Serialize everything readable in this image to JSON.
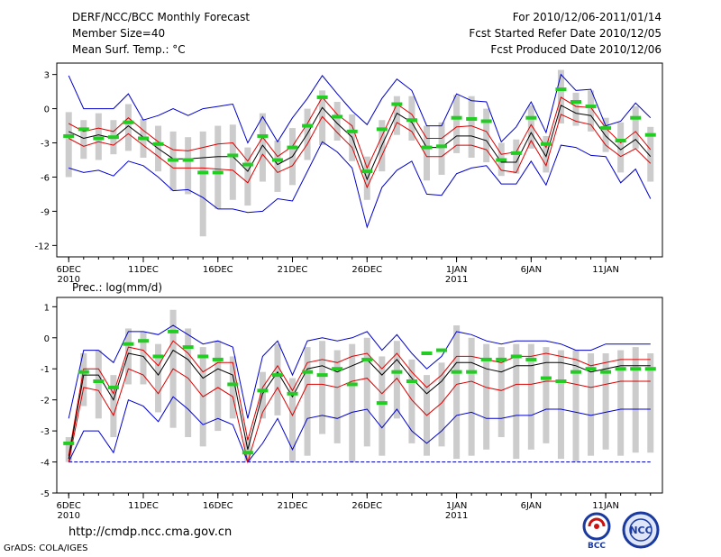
{
  "header": {
    "title": "DERF/NCC/BCC Monthly Forecast",
    "member_size": "Member Size=40",
    "variable": "Mean Surf. Temp.: °C",
    "forecast_period": "For 2010/12/06-2011/01/14",
    "started_refer_date": "Fcst Started Refer Date 2010/12/05",
    "produced_date": "Fcst Produced Date 2010/12/06"
  },
  "footer": {
    "url": "http://cmdp.ncc.cma.gov.cn",
    "grads_credit": "GrADS: COLA/IGES",
    "logo_bcc_text": "BCC",
    "logo_ncc_text": "NCC"
  },
  "colors": {
    "ensemble_mean": "#000000",
    "spread_band": "#dd0000",
    "extreme_envelope": "#0000cc",
    "observed": "#22cc22",
    "member_range": "#cccccc",
    "baseline": "#0000cc"
  },
  "chart_data": [
    {
      "type": "line",
      "title": "Mean Surf. Temp.: °C",
      "x_tick_labels": [
        {
          "day": 0,
          "label": "6DEC",
          "year": "2010"
        },
        {
          "day": 5,
          "label": "11DEC"
        },
        {
          "day": 10,
          "label": "16DEC"
        },
        {
          "day": 15,
          "label": "21DEC"
        },
        {
          "day": 20,
          "label": "26DEC"
        },
        {
          "day": 26,
          "label": "1JAN",
          "year": "2011"
        },
        {
          "day": 31,
          "label": "6JAN"
        },
        {
          "day": 36,
          "label": "11JAN"
        }
      ],
      "ylim": [
        -13,
        4
      ],
      "yticks": [
        3,
        0,
        -3,
        -6,
        -9,
        -12
      ],
      "xlim": [
        -0.8,
        39.8
      ],
      "series": [
        {
          "name": "ensemble mean",
          "role": "mean",
          "values": [
            -2,
            -2.6,
            -2.3,
            -2.6,
            -1.5,
            -2.5,
            -3.5,
            -4.4,
            -4.4,
            -4.3,
            -4.2,
            -4.2,
            -5.5,
            -3.2,
            -4.9,
            -4.2,
            -2.2,
            0.1,
            -1.3,
            -2.5,
            -6.2,
            -3.2,
            -0.4,
            -1.2,
            -3.4,
            -3.4,
            -2.4,
            -2.4,
            -2.8,
            -4.7,
            -4.7,
            -2.1,
            -4.2,
            0.3,
            -0.4,
            -0.6,
            -2.4,
            -3.6,
            -2.7,
            -4.2
          ]
        },
        {
          "name": "upper spread",
          "role": "band",
          "values": [
            -1.3,
            -2,
            -1.7,
            -2,
            -0.8,
            -1.9,
            -2.9,
            -3.6,
            -3.7,
            -3.4,
            -3.1,
            -3,
            -4.6,
            -2.5,
            -4.2,
            -3.3,
            -1.3,
            1,
            -0.5,
            -1.5,
            -5.2,
            -2.4,
            0.4,
            -0.5,
            -2.6,
            -2.6,
            -1.6,
            -1.5,
            -2,
            -4,
            -3.8,
            -1.4,
            -3.4,
            1,
            0.2,
            0.1,
            -1.7,
            -3,
            -2,
            -3.6
          ]
        },
        {
          "name": "lower spread",
          "role": "band",
          "values": [
            -2.6,
            -3.3,
            -2.9,
            -3.2,
            -2.2,
            -3.2,
            -4.2,
            -5.2,
            -5.2,
            -5.2,
            -5.3,
            -5.4,
            -6.5,
            -4,
            -5.6,
            -5,
            -3.1,
            -0.7,
            -2.1,
            -3.4,
            -6.9,
            -4.1,
            -1.2,
            -2,
            -4.2,
            -4.2,
            -3.2,
            -3.2,
            -3.6,
            -5.4,
            -5.6,
            -2.8,
            -5,
            -0.5,
            -1.1,
            -1.4,
            -3.2,
            -4.2,
            -3.5,
            -4.8
          ]
        },
        {
          "name": "ensemble max",
          "role": "envelope",
          "values": [
            2.9,
            0,
            0,
            0,
            1.3,
            -1,
            -0.6,
            0,
            -0.6,
            0,
            0.2,
            0.4,
            -3,
            -0.7,
            -2.9,
            -0.8,
            0.9,
            2.9,
            1.3,
            -0.2,
            -1.4,
            0.9,
            2.6,
            1.6,
            -1.5,
            -1.5,
            1.3,
            0.7,
            0.6,
            -2.9,
            -1.6,
            0.6,
            -2.1,
            3,
            1.6,
            1.7,
            -1.5,
            -1.1,
            0.5,
            -0.8
          ]
        },
        {
          "name": "ensemble min",
          "role": "envelope",
          "values": [
            -5.2,
            -5.6,
            -5.4,
            -5.9,
            -4.6,
            -5,
            -6,
            -7.2,
            -7.1,
            -7.8,
            -8.8,
            -8.8,
            -9.1,
            -9,
            -7.9,
            -8.1,
            -5.5,
            -2.9,
            -3.8,
            -5.2,
            -10.4,
            -6.9,
            -5.4,
            -4.6,
            -7.5,
            -7.6,
            -5.7,
            -5.2,
            -5,
            -6.6,
            -6.6,
            -4.6,
            -6.7,
            -3.2,
            -3.4,
            -4.1,
            -4.2,
            -6.5,
            -5.3,
            -7.9
          ]
        },
        {
          "name": "observed",
          "role": "obs",
          "values": [
            -2.4,
            -1.8,
            -2.6,
            -2.5,
            -1.2,
            -2.6,
            -3.1,
            -4.5,
            -4.5,
            -5.6,
            -5.6,
            -4.1,
            -4.9,
            -2.4,
            -4.5,
            -3.4,
            -1.5,
            1,
            -0.7,
            -2,
            -5.5,
            -1.8,
            0.4,
            -1,
            -3.4,
            -3.3,
            -0.8,
            -0.9,
            -1.1,
            -4.5,
            -3.9,
            -0.8,
            -3.1,
            1.7,
            0.6,
            0.2,
            -1.7,
            -2.8,
            -0.8,
            -2.3
          ]
        },
        {
          "name": "member max",
          "role": "range_top",
          "values": [
            -0.3,
            -1,
            -0.4,
            -1,
            0.4,
            -0.9,
            -1.5,
            -2,
            -2.5,
            -2,
            -1.5,
            -1.4,
            -3.4,
            -0.4,
            -2.8,
            -1.7,
            0,
            1.6,
            0.6,
            -0.5,
            -4.2,
            -1,
            1.1,
            1.1,
            -1.5,
            -1.2,
            1.2,
            1.1,
            0,
            -3,
            -2.7,
            0.3,
            -2.4,
            3.4,
            1.4,
            1.6,
            -0.8,
            -1.2,
            0.2,
            -1.6
          ]
        },
        {
          "name": "member min",
          "role": "range_bottom",
          "values": [
            -6,
            -4.4,
            -4.5,
            -4,
            -3.7,
            -4.3,
            -5.5,
            -7.2,
            -7.5,
            -11.2,
            -8.8,
            -8,
            -8.5,
            -6.4,
            -7.3,
            -6.7,
            -4.5,
            -3.2,
            -2.8,
            -4.6,
            -8,
            -5.5,
            -2.3,
            -2.8,
            -6.3,
            -5.8,
            -3.9,
            -4.3,
            -4.7,
            -5.9,
            -5.7,
            -3.5,
            -5.6,
            -1.3,
            -1.5,
            -2,
            -3.8,
            -5.6,
            -3.5,
            -6.4
          ]
        }
      ]
    },
    {
      "type": "line",
      "title": "Prec.: log(mm/d)",
      "x_tick_labels": [
        {
          "day": 0,
          "label": "6DEC",
          "year": "2010"
        },
        {
          "day": 5,
          "label": "11DEC"
        },
        {
          "day": 10,
          "label": "16DEC"
        },
        {
          "day": 15,
          "label": "21DEC"
        },
        {
          "day": 20,
          "label": "26DEC"
        },
        {
          "day": 26,
          "label": "1JAN",
          "year": "2011"
        },
        {
          "day": 31,
          "label": "6JAN"
        },
        {
          "day": 36,
          "label": "11JAN"
        }
      ],
      "ylim": [
        -5,
        1.3
      ],
      "yticks": [
        1,
        0,
        -1,
        -2,
        -3,
        -4,
        -5
      ],
      "xlim": [
        -0.8,
        39.8
      ],
      "baseline": -4,
      "series": [
        {
          "name": "ensemble mean",
          "role": "mean",
          "values": [
            -3.9,
            -1.2,
            -1.2,
            -2,
            -0.5,
            -0.6,
            -1.2,
            -0.4,
            -0.7,
            -1.3,
            -1,
            -1.2,
            -3.6,
            -1.8,
            -1.1,
            -1.9,
            -1,
            -0.9,
            -1.1,
            -0.9,
            -0.7,
            -1.2,
            -0.7,
            -1.3,
            -1.8,
            -1.4,
            -0.8,
            -0.8,
            -1,
            -1.1,
            -0.9,
            -0.9,
            -0.8,
            -0.8,
            -0.9,
            -1.1,
            -1,
            -0.9,
            -0.9,
            -0.9
          ]
        },
        {
          "name": "upper spread",
          "role": "band",
          "values": [
            -3.8,
            -1,
            -1,
            -1.8,
            -0.3,
            -0.4,
            -0.9,
            -0.1,
            -0.5,
            -1.1,
            -0.8,
            -0.8,
            -3.3,
            -1.6,
            -0.9,
            -1.7,
            -0.8,
            -0.7,
            -0.8,
            -0.6,
            -0.5,
            -1,
            -0.5,
            -1.1,
            -1.6,
            -1.2,
            -0.6,
            -0.6,
            -0.7,
            -0.8,
            -0.6,
            -0.6,
            -0.5,
            -0.6,
            -0.7,
            -0.9,
            -0.8,
            -0.7,
            -0.7,
            -0.7
          ]
        },
        {
          "name": "lower spread",
          "role": "band",
          "values": [
            -4,
            -1.6,
            -1.7,
            -2.5,
            -1,
            -1.2,
            -1.8,
            -1,
            -1.3,
            -1.9,
            -1.6,
            -1.9,
            -4,
            -2.4,
            -1.6,
            -2.5,
            -1.5,
            -1.5,
            -1.6,
            -1.4,
            -1.3,
            -1.8,
            -1.3,
            -2,
            -2.5,
            -2.1,
            -1.5,
            -1.4,
            -1.6,
            -1.7,
            -1.5,
            -1.5,
            -1.4,
            -1.4,
            -1.5,
            -1.6,
            -1.5,
            -1.4,
            -1.4,
            -1.4
          ]
        },
        {
          "name": "ensemble max",
          "role": "envelope",
          "values": [
            -2.6,
            -0.4,
            -0.4,
            -0.8,
            0.2,
            0.2,
            0.1,
            0.4,
            0.1,
            -0.2,
            -0.1,
            -0.3,
            -2.6,
            -0.6,
            -0.1,
            -1.2,
            -0.1,
            0,
            -0.1,
            0,
            0.2,
            -0.4,
            0.1,
            -0.5,
            -1,
            -0.6,
            0.2,
            0.1,
            -0.1,
            -0.2,
            -0.1,
            -0.1,
            -0.1,
            -0.2,
            -0.4,
            -0.4,
            -0.2,
            -0.2,
            -0.2,
            -0.2
          ]
        },
        {
          "name": "ensemble min",
          "role": "envelope",
          "values": [
            -4,
            -3,
            -3,
            -3.7,
            -2,
            -2.2,
            -2.7,
            -1.9,
            -2.3,
            -2.8,
            -2.6,
            -2.8,
            -4,
            -3.4,
            -2.6,
            -3.6,
            -2.6,
            -2.5,
            -2.6,
            -2.4,
            -2.3,
            -2.9,
            -2.3,
            -3,
            -3.4,
            -3,
            -2.5,
            -2.4,
            -2.6,
            -2.6,
            -2.5,
            -2.5,
            -2.3,
            -2.3,
            -2.4,
            -2.5,
            -2.4,
            -2.3,
            -2.3,
            -2.3
          ]
        },
        {
          "name": "observed",
          "role": "obs",
          "values": [
            -3.4,
            -1.1,
            -1.4,
            -1.6,
            -0.2,
            -0.1,
            -0.6,
            0.2,
            -0.3,
            -0.6,
            -0.7,
            -1.5,
            -3.7,
            -1.7,
            -1.2,
            -1.8,
            -1.1,
            -1.2,
            -1,
            -1.5,
            -0.7,
            -2.1,
            -1.1,
            -1.4,
            -0.5,
            -0.4,
            -1.1,
            -1.1,
            -0.7,
            -0.7,
            -0.6,
            -0.7,
            -1.3,
            -1.4,
            -1.1,
            -1,
            -1.1,
            -1,
            -1,
            -1
          ]
        },
        {
          "name": "member max",
          "role": "range_top",
          "values": [
            -3.2,
            -0.5,
            -0.4,
            -1.2,
            0.3,
            0.2,
            -0.2,
            0.9,
            0.3,
            -0.3,
            -0.1,
            -0.6,
            -3.2,
            -1.1,
            -0.2,
            -1.3,
            -0.3,
            -0.1,
            -0.4,
            -0.2,
            0,
            -0.6,
            -0.1,
            -0.7,
            -1.2,
            -0.8,
            0.4,
            0,
            -0.2,
            -0.3,
            -0.2,
            -0.2,
            -0.3,
            -0.4,
            -0.4,
            -0.5,
            -0.5,
            -0.4,
            -0.3,
            -0.5
          ]
        },
        {
          "name": "member min",
          "role": "range_bottom",
          "values": [
            -4,
            -2.2,
            -2.6,
            -3.2,
            -1.5,
            -1.5,
            -2.4,
            -2.9,
            -3.2,
            -3.5,
            -3,
            -2.6,
            -4,
            -2.6,
            -2.5,
            -4,
            -3.8,
            -3.1,
            -3.4,
            -4,
            -3.5,
            -3.8,
            -2.6,
            -3.4,
            -3.8,
            -3.5,
            -3.9,
            -3.8,
            -3.6,
            -3.2,
            -3.9,
            -3.6,
            -3.4,
            -3.9,
            -4,
            -3.8,
            -3.6,
            -3.8,
            -3.7,
            -3.7
          ]
        }
      ]
    }
  ]
}
